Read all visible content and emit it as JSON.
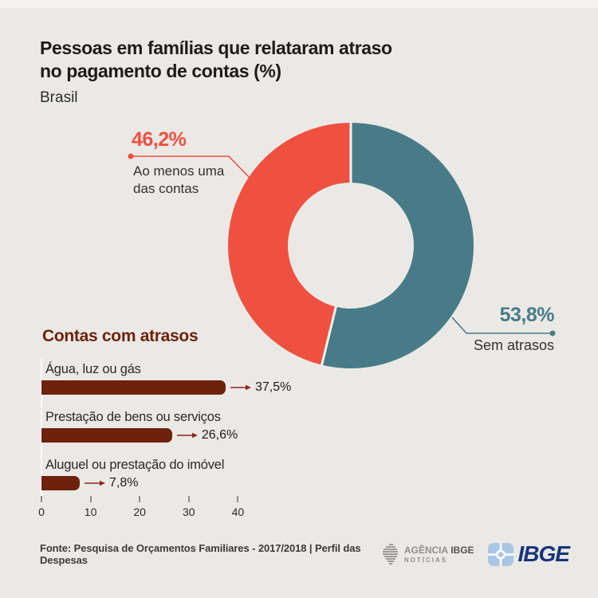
{
  "header": {
    "title_line1": "Pessoas em famílias que relataram atraso",
    "title_line2": "no pagamento de contas (%)",
    "subtitle": "Brasil"
  },
  "donut_callouts": {
    "red_line1": "Ao menos uma",
    "red_line2": "das contas"
  },
  "footer": {
    "source": "Fonte: Pesquisa de Orçamentos Familiares - 2017/2018 | Perfil das Despesas"
  },
  "logos": {
    "agencia_light": "AGÊNCIA",
    "agencia_bold": "IBGE",
    "agencia_sub": "NOTÍCIAS",
    "ibge_text": "IBGE"
  },
  "colors": {
    "background": "#ebe9e6",
    "red": "#ef5140",
    "teal": "#477b88",
    "maroon": "#6e220c",
    "arrow": "#8a2a12",
    "ibge_navy": "#17357d",
    "ibge_light_blue": "#a9c6e4",
    "separator": "#f4f3f0"
  },
  "chart_data": [
    {
      "type": "pie",
      "subtype": "donut",
      "title": "Pessoas em famílias que relataram atraso no pagamento de contas (%)",
      "region": "Brasil",
      "start_angle_deg": 0,
      "direction": "clockwise",
      "slices": [
        {
          "label": "Sem atrasos",
          "value": 53.8,
          "display": "53,8%",
          "color": "#477b88"
        },
        {
          "label": "Ao menos uma das contas",
          "value": 46.2,
          "display": "46,2%",
          "color": "#ef5140"
        }
      ]
    },
    {
      "type": "bar",
      "orientation": "horizontal",
      "title": "Contas com atrasos",
      "categories": [
        "Água, luz ou gás",
        "Prestação de bens ou serviços",
        "Aluguel ou prestação do imóvel"
      ],
      "values": [
        37.5,
        26.6,
        7.8
      ],
      "value_labels": [
        "37,5%",
        "26,6%",
        "7,8%"
      ],
      "xticks": [
        0,
        10,
        20,
        30,
        40
      ],
      "xlim": [
        0,
        40
      ],
      "bar_color": "#6e220c",
      "grid": false,
      "legend": false
    }
  ]
}
